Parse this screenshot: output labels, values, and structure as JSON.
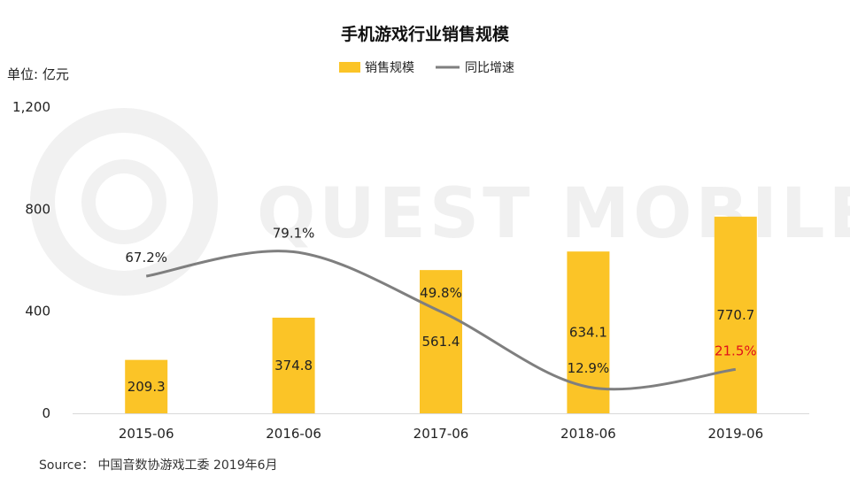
{
  "watermark": "QUEST MOBILE",
  "chart_data": {
    "type": "bar+line",
    "title": "手机游戏行业销售规模",
    "unit_label": "单位: 亿元",
    "categories": [
      "2015-06",
      "2016-06",
      "2017-06",
      "2018-06",
      "2019-06"
    ],
    "series": [
      {
        "name": "销售规模",
        "kind": "bar",
        "color": "#FBC427",
        "values": [
          209.3,
          374.8,
          561.4,
          634.1,
          770.7
        ],
        "value_labels": [
          "209.3",
          "374.8",
          "561.4",
          "634.1",
          "770.7"
        ]
      },
      {
        "name": "同比增速",
        "kind": "line",
        "color": "#7F7F7F",
        "values": [
          67.2,
          79.1,
          49.8,
          12.9,
          21.5
        ],
        "value_labels": [
          "67.2%",
          "79.1%",
          "49.8%",
          "12.9%",
          "21.5%"
        ],
        "highlight_color": "#E0101A",
        "highlight_index": 4
      }
    ],
    "y_axis": {
      "min": 0,
      "max": 1200,
      "ticks": [
        0,
        400,
        800,
        1200
      ],
      "tick_labels": [
        "0",
        "400",
        "800",
        "1,200"
      ]
    },
    "line_axis": {
      "min": 0,
      "max": 150
    },
    "legend_position": "top-center",
    "source": "Source： 中国音数协游戏工委 2019年6月"
  }
}
